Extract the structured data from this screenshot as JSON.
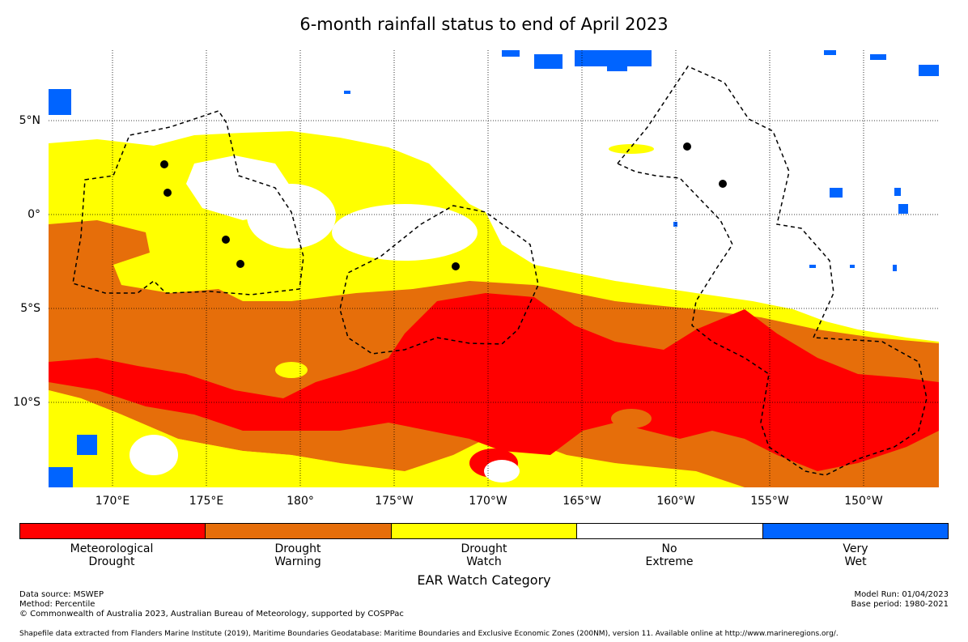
{
  "title": "6-month rainfall status to end of April 2023",
  "map": {
    "lat_labels": [
      "5°N",
      "0°",
      "5°S",
      "10°S"
    ],
    "lon_labels": [
      "170°E",
      "175°E",
      "180°",
      "175°W",
      "170°W",
      "165°W",
      "160°W",
      "155°W",
      "150°W"
    ]
  },
  "legend": {
    "title": "EAR Watch Category",
    "categories": [
      {
        "line1": "Meteorological",
        "line2": "Drought",
        "color": "#ff0000"
      },
      {
        "line1": "Drought",
        "line2": "Warning",
        "color": "#e66e0a"
      },
      {
        "line1": "Drought",
        "line2": "Watch",
        "color": "#ffff00"
      },
      {
        "line1": "No",
        "line2": "Extreme",
        "color": "#ffffff"
      },
      {
        "line1": "Very",
        "line2": "Wet",
        "color": "#0064ff"
      }
    ]
  },
  "footer": {
    "data_source": "Data source: MSWEP",
    "method": "Method: Percentile",
    "copyright": "© Commonwealth of Australia 2023, Australian Bureau of Meteorology, supported by COSPPac",
    "model_run": "Model Run: 01/04/2023",
    "base_period": "Base period: 1980-2021",
    "shapefile": "Shapefile data extracted from Flanders Marine Institute (2019), Maritime Boundaries Geodatabase: Maritime Boundaries and Exclusive Economic Zones (200NM), version 11. Available online at http://www.marineregions.org/."
  }
}
